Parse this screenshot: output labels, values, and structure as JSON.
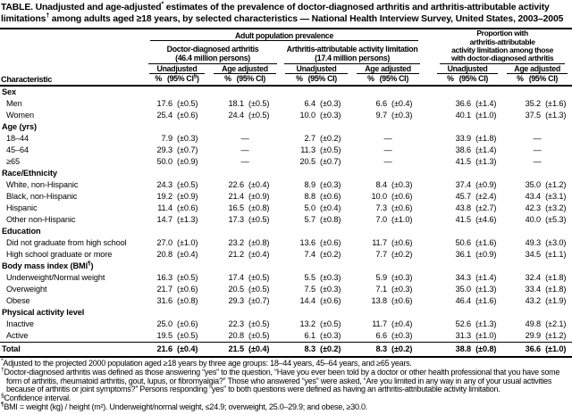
{
  "title": {
    "part1": "TABLE. Unadjusted and age-adjusted",
    "sup1": "*",
    "part2": " estimates of the prevalence of doctor-diagnosed arthritis and arthritis-attributable activity limitations",
    "sup2": "†",
    "part3": " among adults aged ≥18 years, by selected characteristics — National Health Interview Survey, United States, 2003–2005"
  },
  "table": {
    "header": {
      "characteristic": "Characteristic",
      "group_top": "Adult population prevalence",
      "group1_line1": "Doctor-diagnosed arthritis",
      "group1_line2": "(46.4 million persons)",
      "group2_line1": "Arthritis-attributable activity limitation",
      "group2_line2": "(17.4 million persons)",
      "group3_line1": "Proportion with",
      "group3_line2": "arthritis-attributable",
      "group3_line3": "activity limitation among those",
      "group3_line4": "with doctor-diagnosed arthritis",
      "unadjusted": "Unadjusted",
      "age_adjusted": "Age adjusted",
      "pct": "%",
      "ci": "(95% CI)",
      "ci_first_pre": "(95% CI",
      "ci_first_sup": "§",
      "ci_first_close": ")"
    },
    "rows": [
      {
        "type": "section",
        "label": "Sex"
      },
      {
        "type": "data",
        "label": "Men",
        "values": [
          "17.6",
          "(±0.5)",
          "18.1",
          "(±0.5)",
          "6.4",
          "(±0.3)",
          "6.6",
          "(±0.4)",
          "36.6",
          "(±1.4)",
          "35.2",
          "(±1.6)"
        ]
      },
      {
        "type": "data",
        "label": "Women",
        "values": [
          "25.4",
          "(±0.6)",
          "24.4",
          "(±0.5)",
          "10.0",
          "(±0.3)",
          "9.7",
          "(±0.3)",
          "40.1",
          "(±1.0)",
          "37.5",
          "(±1.3)"
        ]
      },
      {
        "type": "section",
        "label": "Age (yrs)"
      },
      {
        "type": "data",
        "label": "18–44",
        "values": [
          "7.9",
          "(±0.3)",
          "—",
          "",
          "2.7",
          "(±0.2)",
          "—",
          "",
          "33.9",
          "(±1.8)",
          "—",
          ""
        ]
      },
      {
        "type": "data",
        "label": "45–64",
        "values": [
          "29.3",
          "(±0.7)",
          "—",
          "",
          "11.3",
          "(±0.5)",
          "—",
          "",
          "38.6",
          "(±1.4)",
          "—",
          ""
        ]
      },
      {
        "type": "data",
        "label": "≥65",
        "values": [
          "50.0",
          "(±0.9)",
          "—",
          "",
          "20.5",
          "(±0.7)",
          "—",
          "",
          "41.5",
          "(±1.3)",
          "—",
          ""
        ]
      },
      {
        "type": "section",
        "label": "Race/Ethnicity"
      },
      {
        "type": "data",
        "label": "White, non-Hispanic",
        "values": [
          "24.3",
          "(±0.5)",
          "22.6",
          "(±0.4)",
          "8.9",
          "(±0.3)",
          "8.4",
          "(±0.3)",
          "37.4",
          "(±0.9)",
          "35.0",
          "(±1.2)"
        ]
      },
      {
        "type": "data",
        "label": "Black, non-Hispanic",
        "values": [
          "19.2",
          "(±0.9)",
          "21.4",
          "(±0.9)",
          "8.8",
          "(±0.6)",
          "10.0",
          "(±0.6)",
          "45.7",
          "(±2.4)",
          "43.4",
          "(±3.1)"
        ]
      },
      {
        "type": "data",
        "label": "Hispanic",
        "values": [
          "11.4",
          "(±0.6)",
          "16.5",
          "(±0.8)",
          "5.0",
          "(±0.4)",
          "7.3",
          "(±0.6)",
          "43.8",
          "(±2.7)",
          "42.3",
          "(±3.2)"
        ]
      },
      {
        "type": "data",
        "label": "Other non-Hispanic",
        "values": [
          "14.7",
          "(±1.3)",
          "17.3",
          "(±0.5)",
          "5.7",
          "(±0.8)",
          "7.0",
          "(±1.0)",
          "41.5",
          "(±4.6)",
          "40.0",
          "(±5.3)"
        ]
      },
      {
        "type": "section",
        "label": "Education"
      },
      {
        "type": "data",
        "label": "Did not graduate from high school",
        "values": [
          "27.0",
          "(±1.0)",
          "23.2",
          "(±0.8)",
          "13.6",
          "(±0.6)",
          "11.7",
          "(±0.6)",
          "50.6",
          "(±1.6)",
          "49.3",
          "(±3.0)"
        ]
      },
      {
        "type": "data",
        "label": "High school graduate or more",
        "values": [
          "20.8",
          "(±0.4)",
          "21.2",
          "(±0.4)",
          "7.4",
          "(±0.2)",
          "7.7",
          "(±0.2)",
          "36.1",
          "(±0.9)",
          "34.5",
          "(±1.1)"
        ]
      },
      {
        "type": "section",
        "label": "Body mass index (BMI",
        "label_sup": "¶",
        "label_post": ")"
      },
      {
        "type": "data",
        "label": "Underweight/Normal weight",
        "values": [
          "16.3",
          "(±0.5)",
          "17.4",
          "(±0.5)",
          "5.5",
          "(±0.3)",
          "5.9",
          "(±0.3)",
          "34.3",
          "(±1.4)",
          "32.4",
          "(±1.8)"
        ]
      },
      {
        "type": "data",
        "label": "Overweight",
        "values": [
          "21.7",
          "(±0.6)",
          "20.5",
          "(±0.5)",
          "7.5",
          "(±0.3)",
          "7.1",
          "(±0.3)",
          "35.0",
          "(±1.3)",
          "33.4",
          "(±1.8)"
        ]
      },
      {
        "type": "data",
        "label": "Obese",
        "values": [
          "31.6",
          "(±0.8)",
          "29.3",
          "(±0.7)",
          "14.4",
          "(±0.6)",
          "13.8",
          "(±0.6)",
          "46.4",
          "(±1.6)",
          "43.2",
          "(±1.9)"
        ]
      },
      {
        "type": "section",
        "label": "Physical activity level"
      },
      {
        "type": "data",
        "label": "Inactive",
        "values": [
          "25.0",
          "(±0.6)",
          "22.3",
          "(±0.5)",
          "13.2",
          "(±0.5)",
          "11.7",
          "(±0.4)",
          "52.6",
          "(±1.3)",
          "49.8",
          "(±2.1)"
        ]
      },
      {
        "type": "data",
        "label": "Active",
        "values": [
          "19.5",
          "(±0.5)",
          "20.8",
          "(±0.5)",
          "6.1",
          "(±0.3)",
          "6.6",
          "(±0.3)",
          "31.3",
          "(±1.0)",
          "29.9",
          "(±1.2)"
        ]
      },
      {
        "type": "total",
        "label": "Total",
        "values": [
          "21.6",
          "(±0.4)",
          "21.5",
          "(±0.4)",
          "8.3",
          "(±0.2)",
          "8.3",
          "(±0.2)",
          "38.8",
          "(±0.8)",
          "36.6",
          "(±1.0)"
        ]
      }
    ]
  },
  "footnotes": [
    {
      "marker": "*",
      "text": "Adjusted to the projected 2000 population aged ≥18 years by three age groups: 18–44 years, 45–64 years, and ≥65 years."
    },
    {
      "marker": "†",
      "text": "Doctor-diagnosed arthritis was defined as those answering “yes” to the question, “Have you ever been told by a doctor or other health professional that you have some form of arthritis, rheumatoid arthritis, gout, lupus, or fibromyalgia?” Those who answered “yes” were asked, “Are you limited in any way in any of your usual activities because of arthritis or joint symptoms?” Persons responding “yes” to both questions were defined as having an arthritis-attributable activity limitation."
    },
    {
      "marker": "§",
      "text": "Confidence interval."
    },
    {
      "marker": "¶",
      "text": "BMI = weight (kg) / height (m²). Underweight/normal weight, ≤24.9; overweight, 25.0–29.9; and obese, ≥30.0."
    }
  ]
}
